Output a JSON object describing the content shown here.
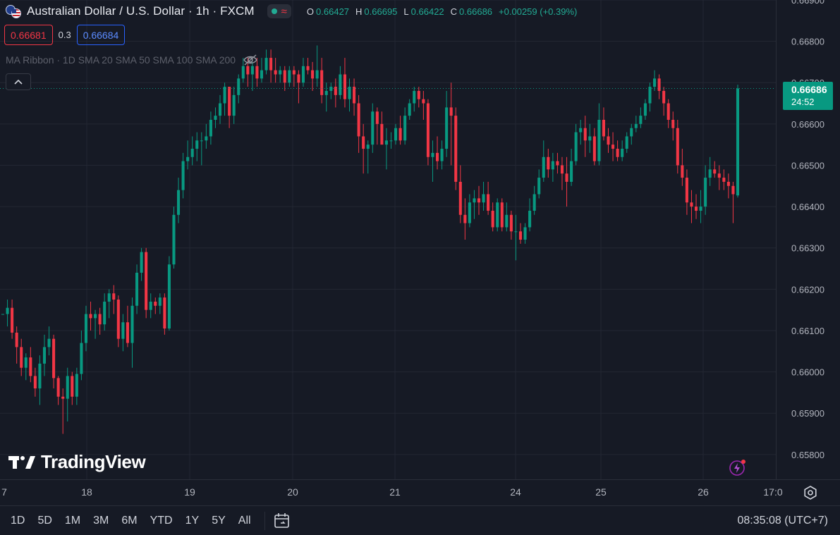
{
  "header": {
    "symbol_title": "Australian Dollar / U.S. Dollar · 1h · FXCM",
    "ohlc": [
      {
        "key": "O",
        "value": "0.66427"
      },
      {
        "key": "H",
        "value": "0.66695"
      },
      {
        "key": "L",
        "value": "0.66422"
      },
      {
        "key": "C",
        "value": "0.66686"
      }
    ],
    "change": "+0.00259 (+0.39%)"
  },
  "quote": {
    "sell": "0.66681",
    "spread": "0.3",
    "buy": "0.66684"
  },
  "indicator": {
    "label": "MA Ribbon · 1D SMA 20 SMA 50 SMA 100 SMA 200"
  },
  "price_tag": {
    "price": "0.66686",
    "countdown": "24:52"
  },
  "brand": {
    "name": "TradingView"
  },
  "bottom_bar": {
    "timeframes": [
      "1D",
      "5D",
      "1M",
      "3M",
      "6M",
      "YTD",
      "1Y",
      "5Y",
      "All"
    ],
    "clock": "08:35:08 (UTC+7)"
  },
  "colors": {
    "background": "#161a25",
    "grid": "#232733",
    "up": "#089981",
    "down": "#f23645",
    "axis_text": "#b2b5be",
    "current_price_line": "#089981"
  },
  "chart_data": {
    "type": "candlestick",
    "symbol": "AUD/USD",
    "interval": "1h",
    "ylim": [
      0.6574,
      0.669
    ],
    "y_ticks": [
      "0.66900",
      "0.66800",
      "0.66700",
      "0.66600",
      "0.66500",
      "0.66400",
      "0.66300",
      "0.66200",
      "0.66100",
      "0.66000",
      "0.65900",
      "0.65800"
    ],
    "x_ticks": [
      "7",
      "18",
      "19",
      "20",
      "21",
      "24",
      "25",
      "26",
      "17:0"
    ],
    "last_price": 0.66686,
    "candles": [
      [
        0.6614,
        0.6614,
        0.6614,
        0.6614
      ],
      [
        0.6614,
        0.66175,
        0.6611,
        0.66155
      ],
      [
        0.66155,
        0.66175,
        0.6608,
        0.66095
      ],
      [
        0.66095,
        0.6611,
        0.6602,
        0.6606
      ],
      [
        0.6606,
        0.6608,
        0.6599,
        0.6601
      ],
      [
        0.6601,
        0.66045,
        0.6598,
        0.66035
      ],
      [
        0.66035,
        0.6606,
        0.65975,
        0.6599
      ],
      [
        0.6599,
        0.6601,
        0.6594,
        0.6596
      ],
      [
        0.6596,
        0.6604,
        0.6592,
        0.6602
      ],
      [
        0.6602,
        0.6609,
        0.6599,
        0.6606
      ],
      [
        0.6606,
        0.6611,
        0.6604,
        0.6608
      ],
      [
        0.6608,
        0.6609,
        0.6596,
        0.65985
      ],
      [
        0.65985,
        0.6599,
        0.6592,
        0.6594
      ],
      [
        0.6594,
        0.6596,
        0.6585,
        0.65935
      ],
      [
        0.65935,
        0.6601,
        0.6588,
        0.6599
      ],
      [
        0.6599,
        0.66,
        0.6592,
        0.6594
      ],
      [
        0.6594,
        0.6601,
        0.6592,
        0.65995
      ],
      [
        0.65995,
        0.661,
        0.6598,
        0.6607
      ],
      [
        0.6607,
        0.6616,
        0.6605,
        0.6614
      ],
      [
        0.6614,
        0.6617,
        0.661,
        0.6613
      ],
      [
        0.6613,
        0.6615,
        0.6608,
        0.6614
      ],
      [
        0.6614,
        0.66155,
        0.6609,
        0.66115
      ],
      [
        0.66115,
        0.6619,
        0.661,
        0.6617
      ],
      [
        0.6617,
        0.662,
        0.6613,
        0.6619
      ],
      [
        0.6619,
        0.6621,
        0.6614,
        0.66175
      ],
      [
        0.66175,
        0.66185,
        0.6606,
        0.6608
      ],
      [
        0.6608,
        0.6614,
        0.6605,
        0.6612
      ],
      [
        0.6612,
        0.6616,
        0.6606,
        0.6607
      ],
      [
        0.6607,
        0.6618,
        0.6601,
        0.6616
      ],
      [
        0.6616,
        0.6626,
        0.6614,
        0.6624
      ],
      [
        0.6624,
        0.663,
        0.6622,
        0.6629
      ],
      [
        0.6629,
        0.663,
        0.6613,
        0.6615
      ],
      [
        0.6615,
        0.6619,
        0.6613,
        0.6617
      ],
      [
        0.6617,
        0.6618,
        0.6614,
        0.6616
      ],
      [
        0.6616,
        0.6619,
        0.6614,
        0.6618
      ],
      [
        0.6618,
        0.6619,
        0.6609,
        0.66105
      ],
      [
        0.66105,
        0.6628,
        0.661,
        0.6626
      ],
      [
        0.6626,
        0.664,
        0.6625,
        0.6638
      ],
      [
        0.6638,
        0.6647,
        0.6636,
        0.6644
      ],
      [
        0.6644,
        0.6653,
        0.6642,
        0.6651
      ],
      [
        0.6651,
        0.6656,
        0.6649,
        0.6652
      ],
      [
        0.6652,
        0.6657,
        0.665,
        0.6654
      ],
      [
        0.6654,
        0.6658,
        0.6651,
        0.6656
      ],
      [
        0.6656,
        0.6658,
        0.665,
        0.6656
      ],
      [
        0.6656,
        0.666,
        0.6654,
        0.6657
      ],
      [
        0.6657,
        0.6663,
        0.6655,
        0.6661
      ],
      [
        0.6661,
        0.6664,
        0.6659,
        0.6662
      ],
      [
        0.6662,
        0.6667,
        0.666,
        0.6665
      ],
      [
        0.6665,
        0.667,
        0.6662,
        0.6669
      ],
      [
        0.6669,
        0.6668,
        0.6659,
        0.6662
      ],
      [
        0.6662,
        0.6669,
        0.666,
        0.6667
      ],
      [
        0.6667,
        0.6672,
        0.6665,
        0.6671
      ],
      [
        0.6671,
        0.6676,
        0.667,
        0.6674
      ],
      [
        0.6674,
        0.6676,
        0.6669,
        0.6672
      ],
      [
        0.6672,
        0.6675,
        0.6668,
        0.6674
      ],
      [
        0.6674,
        0.6676,
        0.6669,
        0.6671
      ],
      [
        0.6671,
        0.6676,
        0.667,
        0.6673
      ],
      [
        0.6673,
        0.6678,
        0.6672,
        0.6676
      ],
      [
        0.6676,
        0.6678,
        0.667,
        0.6673
      ],
      [
        0.6673,
        0.6676,
        0.667,
        0.6672
      ],
      [
        0.6672,
        0.6674,
        0.667,
        0.6673
      ],
      [
        0.6673,
        0.6674,
        0.6668,
        0.667
      ],
      [
        0.667,
        0.6674,
        0.6669,
        0.6673
      ],
      [
        0.6673,
        0.6674,
        0.6669,
        0.6672
      ],
      [
        0.6672,
        0.6673,
        0.6665,
        0.667
      ],
      [
        0.667,
        0.6676,
        0.6669,
        0.6674
      ],
      [
        0.6674,
        0.6676,
        0.6672,
        0.6673
      ],
      [
        0.6673,
        0.6675,
        0.6668,
        0.6671
      ],
      [
        0.6671,
        0.6679,
        0.6669,
        0.6673
      ],
      [
        0.6673,
        0.6676,
        0.6665,
        0.6667
      ],
      [
        0.6667,
        0.667,
        0.6663,
        0.6668
      ],
      [
        0.6668,
        0.667,
        0.6666,
        0.6669
      ],
      [
        0.6669,
        0.6671,
        0.6664,
        0.6667
      ],
      [
        0.6667,
        0.6674,
        0.6666,
        0.6672
      ],
      [
        0.6672,
        0.6676,
        0.6664,
        0.6666
      ],
      [
        0.6666,
        0.6671,
        0.6663,
        0.6669
      ],
      [
        0.6669,
        0.6671,
        0.6662,
        0.6665
      ],
      [
        0.6665,
        0.6667,
        0.6653,
        0.6657
      ],
      [
        0.6657,
        0.666,
        0.6648,
        0.6654
      ],
      [
        0.6654,
        0.6656,
        0.6648,
        0.6655
      ],
      [
        0.6655,
        0.6665,
        0.6653,
        0.6663
      ],
      [
        0.6663,
        0.6664,
        0.6655,
        0.666
      ],
      [
        0.666,
        0.6663,
        0.6656,
        0.6655
      ],
      [
        0.6655,
        0.6659,
        0.6649,
        0.6656
      ],
      [
        0.6656,
        0.6658,
        0.6654,
        0.6656
      ],
      [
        0.6656,
        0.666,
        0.6655,
        0.6659
      ],
      [
        0.6659,
        0.6662,
        0.6655,
        0.6656
      ],
      [
        0.6656,
        0.6664,
        0.6655,
        0.6662
      ],
      [
        0.6662,
        0.6666,
        0.6661,
        0.6665
      ],
      [
        0.6665,
        0.6669,
        0.6663,
        0.6668
      ],
      [
        0.6668,
        0.6669,
        0.6664,
        0.6666
      ],
      [
        0.6666,
        0.6668,
        0.6661,
        0.6665
      ],
      [
        0.6665,
        0.6666,
        0.665,
        0.6652
      ],
      [
        0.6652,
        0.6656,
        0.6646,
        0.6653
      ],
      [
        0.6653,
        0.6657,
        0.6649,
        0.6651
      ],
      [
        0.6651,
        0.6656,
        0.6649,
        0.6654
      ],
      [
        0.6654,
        0.6668,
        0.6652,
        0.6664
      ],
      [
        0.6664,
        0.667,
        0.665,
        0.6662
      ],
      [
        0.6662,
        0.6664,
        0.6644,
        0.6646
      ],
      [
        0.6646,
        0.665,
        0.6636,
        0.6638
      ],
      [
        0.6638,
        0.6642,
        0.6632,
        0.6636
      ],
      [
        0.6636,
        0.6643,
        0.6635,
        0.6641
      ],
      [
        0.6641,
        0.6644,
        0.6637,
        0.6642
      ],
      [
        0.6642,
        0.6645,
        0.6638,
        0.6641
      ],
      [
        0.6641,
        0.6646,
        0.6639,
        0.6643
      ],
      [
        0.6643,
        0.6646,
        0.6638,
        0.6639
      ],
      [
        0.6639,
        0.6641,
        0.6634,
        0.6635
      ],
      [
        0.6635,
        0.6642,
        0.6634,
        0.6641
      ],
      [
        0.6641,
        0.6642,
        0.6634,
        0.6635
      ],
      [
        0.6635,
        0.6641,
        0.6634,
        0.6638
      ],
      [
        0.6638,
        0.6639,
        0.6632,
        0.6634
      ],
      [
        0.6634,
        0.6638,
        0.6627,
        0.6634
      ],
      [
        0.6634,
        0.6636,
        0.6631,
        0.6632
      ],
      [
        0.6632,
        0.6636,
        0.6631,
        0.6635
      ],
      [
        0.6635,
        0.6642,
        0.6634,
        0.6639
      ],
      [
        0.6639,
        0.6645,
        0.6638,
        0.6643
      ],
      [
        0.6643,
        0.6649,
        0.6642,
        0.6647
      ],
      [
        0.6647,
        0.6656,
        0.6646,
        0.6652
      ],
      [
        0.6652,
        0.6654,
        0.6647,
        0.6649
      ],
      [
        0.6649,
        0.6653,
        0.6646,
        0.6651
      ],
      [
        0.6651,
        0.6653,
        0.6648,
        0.665
      ],
      [
        0.665,
        0.6652,
        0.6644,
        0.6648
      ],
      [
        0.6648,
        0.6652,
        0.664,
        0.6646
      ],
      [
        0.6646,
        0.6654,
        0.6645,
        0.6651
      ],
      [
        0.6651,
        0.666,
        0.665,
        0.6658
      ],
      [
        0.6658,
        0.6661,
        0.6655,
        0.6659
      ],
      [
        0.6659,
        0.6662,
        0.6652,
        0.6656
      ],
      [
        0.6656,
        0.666,
        0.6653,
        0.6657
      ],
      [
        0.6657,
        0.6659,
        0.665,
        0.6651
      ],
      [
        0.6651,
        0.6665,
        0.665,
        0.6661
      ],
      [
        0.6661,
        0.6664,
        0.6656,
        0.6657
      ],
      [
        0.6657,
        0.6659,
        0.6653,
        0.6655
      ],
      [
        0.6655,
        0.6658,
        0.6651,
        0.6654
      ],
      [
        0.6654,
        0.6656,
        0.6651,
        0.6652
      ],
      [
        0.6652,
        0.6656,
        0.6651,
        0.6654
      ],
      [
        0.6654,
        0.6658,
        0.6653,
        0.6657
      ],
      [
        0.6657,
        0.666,
        0.6655,
        0.6659
      ],
      [
        0.6659,
        0.6662,
        0.6658,
        0.666
      ],
      [
        0.666,
        0.6664,
        0.6659,
        0.6662
      ],
      [
        0.6662,
        0.6666,
        0.6661,
        0.6665
      ],
      [
        0.6665,
        0.667,
        0.6663,
        0.6669
      ],
      [
        0.6669,
        0.6673,
        0.6668,
        0.6671
      ],
      [
        0.6671,
        0.6672,
        0.6666,
        0.6668
      ],
      [
        0.6668,
        0.6669,
        0.6662,
        0.6665
      ],
      [
        0.6665,
        0.6666,
        0.6659,
        0.6661
      ],
      [
        0.6661,
        0.6663,
        0.6656,
        0.6659
      ],
      [
        0.6659,
        0.6661,
        0.6648,
        0.665
      ],
      [
        0.665,
        0.6654,
        0.6645,
        0.6647
      ],
      [
        0.6647,
        0.6649,
        0.6638,
        0.6641
      ],
      [
        0.6641,
        0.6644,
        0.6636,
        0.664
      ],
      [
        0.664,
        0.6643,
        0.6637,
        0.6639
      ],
      [
        0.6639,
        0.6644,
        0.6636,
        0.664
      ],
      [
        0.664,
        0.665,
        0.6638,
        0.6647
      ],
      [
        0.6647,
        0.6652,
        0.6645,
        0.6649
      ],
      [
        0.6649,
        0.6651,
        0.6647,
        0.6648
      ],
      [
        0.6648,
        0.665,
        0.6644,
        0.6647
      ],
      [
        0.6647,
        0.6649,
        0.6644,
        0.6646
      ],
      [
        0.6646,
        0.6648,
        0.6642,
        0.6645
      ],
      [
        0.6645,
        0.6646,
        0.6636,
        0.6643
      ],
      [
        0.66427,
        0.66695,
        0.66422,
        0.66686
      ]
    ]
  }
}
